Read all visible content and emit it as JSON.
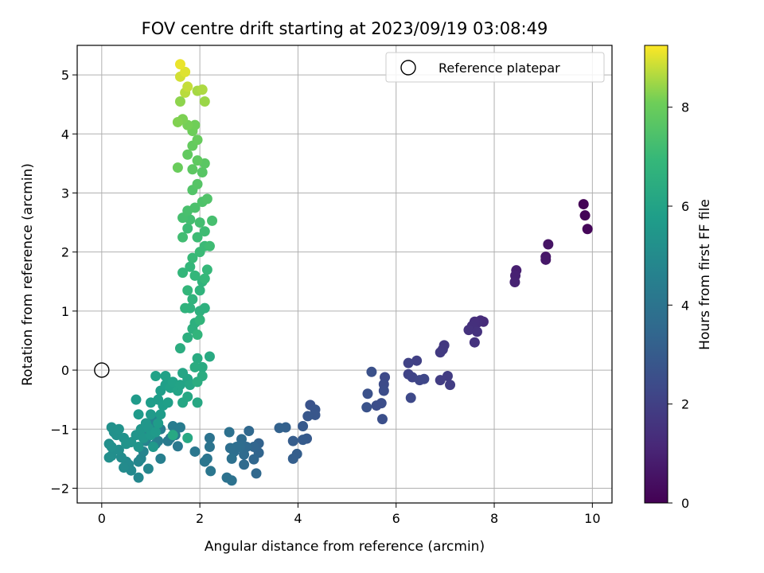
{
  "chart_data": {
    "type": "scatter",
    "title": "FOV centre drift starting at 2023/09/19 03:08:49",
    "xlabel": "Angular distance from reference (arcmin)",
    "ylabel": "Rotation from reference (arcmin)",
    "xlim": [
      -0.5,
      10.4
    ],
    "ylim": [
      -2.25,
      5.5
    ],
    "xticks": [
      "0",
      "2",
      "4",
      "6",
      "8",
      "10"
    ],
    "yticks": [
      "−2",
      "−1",
      "0",
      "1",
      "2",
      "3",
      "4",
      "5"
    ],
    "grid": true,
    "legend_position": "top-right",
    "legend": {
      "label": "Reference platepar"
    },
    "reference_point": {
      "x": 0,
      "y": 0
    },
    "colorbar": {
      "label": "Hours from first FF file",
      "colormap": "viridis",
      "range": [
        0,
        9.25
      ],
      "ticks": [
        "0",
        "2",
        "4",
        "6",
        "8"
      ]
    },
    "points": [
      [
        9.82,
        2.81,
        0.05
      ],
      [
        9.85,
        2.62,
        0.1
      ],
      [
        9.9,
        2.39,
        0.15
      ],
      [
        9.1,
        2.13,
        0.55
      ],
      [
        9.05,
        1.92,
        0.6
      ],
      [
        9.05,
        1.87,
        0.65
      ],
      [
        8.45,
        1.69,
        0.9
      ],
      [
        8.43,
        1.6,
        0.95
      ],
      [
        8.42,
        1.49,
        1.0
      ],
      [
        7.78,
        0.82,
        1.25
      ],
      [
        7.72,
        0.84,
        1.3
      ],
      [
        7.65,
        0.8,
        1.35
      ],
      [
        7.6,
        0.82,
        1.4
      ],
      [
        7.55,
        0.75,
        1.45
      ],
      [
        7.48,
        0.68,
        1.5
      ],
      [
        7.65,
        0.65,
        1.5
      ],
      [
        7.6,
        0.47,
        1.55
      ],
      [
        6.98,
        0.42,
        1.7
      ],
      [
        6.95,
        0.35,
        1.75
      ],
      [
        6.9,
        0.3,
        1.8
      ],
      [
        7.05,
        -0.1,
        1.85
      ],
      [
        7.1,
        -0.25,
        1.9
      ],
      [
        6.9,
        -0.17,
        1.9
      ],
      [
        6.42,
        0.16,
        2.0
      ],
      [
        6.25,
        0.12,
        2.05
      ],
      [
        6.25,
        -0.07,
        2.1
      ],
      [
        6.33,
        -0.12,
        2.15
      ],
      [
        6.48,
        -0.17,
        2.2
      ],
      [
        6.57,
        -0.15,
        2.25
      ],
      [
        6.3,
        -0.47,
        2.3
      ],
      [
        5.77,
        -0.12,
        2.35
      ],
      [
        5.75,
        -0.24,
        2.4
      ],
      [
        5.75,
        -0.35,
        2.45
      ],
      [
        5.7,
        -0.56,
        2.5
      ],
      [
        5.6,
        -0.6,
        2.5
      ],
      [
        5.72,
        -0.83,
        2.55
      ],
      [
        5.5,
        -0.03,
        2.6
      ],
      [
        5.42,
        -0.4,
        2.6
      ],
      [
        5.4,
        -0.63,
        2.65
      ],
      [
        4.25,
        -0.59,
        2.7
      ],
      [
        4.35,
        -0.67,
        2.75
      ],
      [
        4.35,
        -0.76,
        2.8
      ],
      [
        4.2,
        -0.78,
        2.85
      ],
      [
        4.1,
        -0.95,
        2.9
      ],
      [
        4.18,
        -1.16,
        2.95
      ],
      [
        4.1,
        -1.18,
        3.0
      ],
      [
        3.9,
        -1.2,
        3.05
      ],
      [
        3.98,
        -1.42,
        3.1
      ],
      [
        3.9,
        -1.5,
        3.15
      ],
      [
        3.75,
        -0.97,
        3.2
      ],
      [
        3.62,
        -0.98,
        3.25
      ],
      [
        3.2,
        -1.24,
        3.3
      ],
      [
        3.2,
        -1.4,
        3.35
      ],
      [
        3.1,
        -1.3,
        3.4
      ],
      [
        3.1,
        -1.51,
        3.45
      ],
      [
        3.15,
        -1.75,
        3.5
      ],
      [
        3.0,
        -1.03,
        3.5
      ],
      [
        2.95,
        -1.3,
        3.55
      ],
      [
        2.9,
        -1.43,
        3.6
      ],
      [
        2.9,
        -1.6,
        3.6
      ],
      [
        2.85,
        -1.17,
        3.65
      ],
      [
        2.82,
        -1.3,
        3.7
      ],
      [
        2.75,
        -1.3,
        3.75
      ],
      [
        2.7,
        -1.38,
        3.75
      ],
      [
        2.62,
        -1.32,
        3.8
      ],
      [
        2.65,
        -1.5,
        3.85
      ],
      [
        2.6,
        -1.05,
        3.85
      ],
      [
        2.55,
        -1.82,
        3.9
      ],
      [
        2.65,
        -1.87,
        3.9
      ],
      [
        2.2,
        -1.15,
        3.95
      ],
      [
        2.2,
        -1.3,
        4.0
      ],
      [
        2.15,
        -1.5,
        4.05
      ],
      [
        2.1,
        -1.55,
        4.1
      ],
      [
        2.22,
        -1.71,
        4.1
      ],
      [
        1.9,
        -1.38,
        4.15
      ],
      [
        1.55,
        -1.29,
        4.2
      ],
      [
        1.4,
        -1.15,
        4.25
      ],
      [
        1.35,
        -1.2,
        4.3
      ],
      [
        1.5,
        -1.1,
        4.3
      ],
      [
        1.45,
        -0.95,
        4.35
      ],
      [
        1.6,
        -0.97,
        4.35
      ],
      [
        1.2,
        -1.0,
        4.4
      ],
      [
        1.15,
        -1.2,
        4.45
      ],
      [
        1.1,
        -1.25,
        4.5
      ],
      [
        1.2,
        -1.5,
        4.5
      ],
      [
        1.05,
        -0.8,
        4.55
      ],
      [
        1.0,
        -0.95,
        4.6
      ],
      [
        0.95,
        -1.05,
        4.65
      ],
      [
        0.9,
        -1.2,
        4.7
      ],
      [
        0.85,
        -1.38,
        4.7
      ],
      [
        0.8,
        -1.5,
        4.75
      ],
      [
        0.75,
        -1.55,
        4.8
      ],
      [
        0.95,
        -1.67,
        4.8
      ],
      [
        0.75,
        -1.82,
        4.85
      ],
      [
        0.6,
        -1.7,
        4.9
      ],
      [
        0.55,
        -1.6,
        4.9
      ],
      [
        0.5,
        -1.55,
        4.95
      ],
      [
        0.45,
        -1.65,
        5.0
      ],
      [
        0.4,
        -1.48,
        5.05
      ],
      [
        0.35,
        -1.35,
        5.1
      ],
      [
        0.2,
        -1.45,
        5.1
      ],
      [
        0.15,
        -1.48,
        5.15
      ],
      [
        0.15,
        -1.25,
        5.15
      ],
      [
        0.2,
        -1.3,
        5.2
      ],
      [
        0.25,
        -1.05,
        5.2
      ],
      [
        0.3,
        -1.1,
        5.25
      ],
      [
        0.2,
        -0.97,
        5.25
      ],
      [
        0.35,
        -1.0,
        5.3
      ],
      [
        0.45,
        -1.15,
        5.3
      ],
      [
        0.5,
        -1.25,
        5.35
      ],
      [
        0.6,
        -1.22,
        5.35
      ],
      [
        0.7,
        -1.1,
        5.4
      ],
      [
        0.75,
        -1.3,
        5.4
      ],
      [
        0.8,
        -1.0,
        5.45
      ],
      [
        0.85,
        -1.15,
        5.45
      ],
      [
        0.9,
        -0.9,
        5.5
      ],
      [
        0.95,
        -0.98,
        5.5
      ],
      [
        1.0,
        -1.1,
        5.55
      ],
      [
        1.05,
        -1.3,
        5.55
      ],
      [
        1.1,
        -1.05,
        5.6
      ],
      [
        1.0,
        -0.75,
        5.6
      ],
      [
        0.75,
        -0.75,
        5.65
      ],
      [
        0.7,
        -0.5,
        5.65
      ],
      [
        1.15,
        -0.9,
        5.7
      ],
      [
        1.2,
        -0.75,
        5.7
      ],
      [
        1.0,
        -0.55,
        5.75
      ],
      [
        1.15,
        -0.5,
        5.75
      ],
      [
        1.25,
        -0.6,
        5.8
      ],
      [
        1.2,
        -0.35,
        5.8
      ],
      [
        1.35,
        -0.55,
        5.85
      ],
      [
        1.3,
        -0.25,
        5.85
      ],
      [
        1.4,
        -0.3,
        5.9
      ],
      [
        1.3,
        -0.1,
        5.9
      ],
      [
        1.1,
        -0.1,
        5.95
      ],
      [
        1.45,
        -0.2,
        5.95
      ],
      [
        1.55,
        -0.35,
        6.0
      ],
      [
        1.6,
        -0.25,
        6.0
      ],
      [
        1.75,
        -0.15,
        6.05
      ],
      [
        1.65,
        -0.05,
        6.1
      ],
      [
        1.8,
        -0.25,
        6.15
      ],
      [
        1.65,
        -0.55,
        6.15
      ],
      [
        1.75,
        -0.45,
        6.2
      ],
      [
        1.95,
        -0.55,
        6.2
      ],
      [
        1.75,
        -1.15,
        6.25
      ],
      [
        1.45,
        -1.1,
        6.25
      ],
      [
        2.2,
        0.23,
        6.3
      ],
      [
        1.95,
        0.2,
        6.35
      ],
      [
        2.05,
        0.05,
        6.35
      ],
      [
        1.9,
        0.05,
        6.4
      ],
      [
        2.05,
        -0.1,
        6.4
      ],
      [
        1.95,
        -0.2,
        6.45
      ],
      [
        1.6,
        0.37,
        6.45
      ],
      [
        1.75,
        0.55,
        6.5
      ],
      [
        1.85,
        0.7,
        6.55
      ],
      [
        1.9,
        0.8,
        6.55
      ],
      [
        2.0,
        1.0,
        6.6
      ],
      [
        2.1,
        1.05,
        6.6
      ],
      [
        1.8,
        1.05,
        6.65
      ],
      [
        1.7,
        1.05,
        6.7
      ],
      [
        1.85,
        1.2,
        6.7
      ],
      [
        2.0,
        1.35,
        6.75
      ],
      [
        2.05,
        1.5,
        6.75
      ],
      [
        1.95,
        0.6,
        6.8
      ],
      [
        2.0,
        0.85,
        6.8
      ],
      [
        1.75,
        1.35,
        6.85
      ],
      [
        1.65,
        1.65,
        6.85
      ],
      [
        1.8,
        1.75,
        6.9
      ],
      [
        1.9,
        1.6,
        6.9
      ],
      [
        2.1,
        1.55,
        6.95
      ],
      [
        2.15,
        1.7,
        6.95
      ],
      [
        1.85,
        1.9,
        7.0
      ],
      [
        2.0,
        2.0,
        7.05
      ],
      [
        2.1,
        2.1,
        7.05
      ],
      [
        1.95,
        2.25,
        7.1
      ],
      [
        1.75,
        2.4,
        7.1
      ],
      [
        2.1,
        2.35,
        7.15
      ],
      [
        2.2,
        2.1,
        7.15
      ],
      [
        1.65,
        2.25,
        7.2
      ],
      [
        1.8,
        2.55,
        7.25
      ],
      [
        2.0,
        2.5,
        7.25
      ],
      [
        2.25,
        2.53,
        7.3
      ],
      [
        1.65,
        2.58,
        7.3
      ],
      [
        1.75,
        2.7,
        7.35
      ],
      [
        1.9,
        2.75,
        7.4
      ],
      [
        2.05,
        2.85,
        7.45
      ],
      [
        2.15,
        2.9,
        7.5
      ],
      [
        1.85,
        3.05,
        7.55
      ],
      [
        1.95,
        3.15,
        7.6
      ],
      [
        2.05,
        3.35,
        7.65
      ],
      [
        2.1,
        3.5,
        7.7
      ],
      [
        1.85,
        3.4,
        7.75
      ],
      [
        1.95,
        3.55,
        7.8
      ],
      [
        1.75,
        3.65,
        7.85
      ],
      [
        1.85,
        3.8,
        7.9
      ],
      [
        1.95,
        3.9,
        7.95
      ],
      [
        1.55,
        3.43,
        8.0
      ],
      [
        1.85,
        4.05,
        8.05
      ],
      [
        1.9,
        4.15,
        8.1
      ],
      [
        1.75,
        4.15,
        8.15
      ],
      [
        1.65,
        4.25,
        8.2
      ],
      [
        1.55,
        4.2,
        8.25
      ],
      [
        1.6,
        4.55,
        8.35
      ],
      [
        2.1,
        4.55,
        8.45
      ],
      [
        1.95,
        4.73,
        8.55
      ],
      [
        2.05,
        4.75,
        8.6
      ],
      [
        1.7,
        4.7,
        8.7
      ],
      [
        1.75,
        4.8,
        8.8
      ],
      [
        1.6,
        4.97,
        8.9
      ],
      [
        1.7,
        5.05,
        9.0
      ],
      [
        1.6,
        5.18,
        9.1
      ]
    ]
  }
}
